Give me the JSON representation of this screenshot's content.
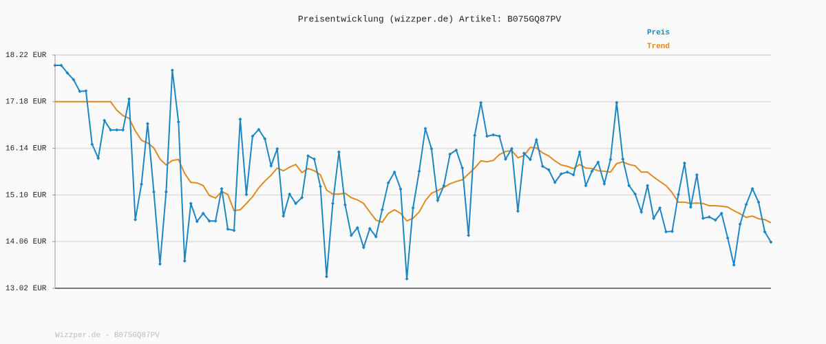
{
  "chart_data": {
    "type": "line",
    "title": "Preisentwicklung (wizzper.de) Artikel: B075GQ87PV",
    "footer": "Wizzper.de - B075GQ87PV",
    "ylim": [
      13.02,
      18.22
    ],
    "yticks": [
      {
        "value": 13.02,
        "label": "13.02 EUR"
      },
      {
        "value": 14.06,
        "label": "14.06 EUR"
      },
      {
        "value": 15.1,
        "label": "15.10 EUR"
      },
      {
        "value": 16.14,
        "label": "16.14 EUR"
      },
      {
        "value": 17.18,
        "label": "17.18 EUR"
      },
      {
        "value": 18.22,
        "label": "18.22 EUR"
      }
    ],
    "grid": true,
    "legend": "top-right",
    "series": [
      {
        "name": "Preis",
        "color": "#1b86c4",
        "markers": true,
        "values": [
          17.99,
          17.99,
          17.82,
          17.67,
          17.41,
          17.42,
          16.23,
          15.92,
          16.76,
          16.55,
          16.55,
          16.55,
          17.24,
          14.55,
          15.34,
          16.69,
          15.17,
          13.56,
          15.17,
          17.88,
          16.73,
          13.63,
          14.91,
          14.51,
          14.69,
          14.52,
          14.52,
          15.24,
          14.34,
          14.31,
          16.79,
          15.11,
          16.41,
          16.56,
          16.35,
          15.75,
          16.13,
          14.63,
          15.12,
          14.91,
          15.04,
          15.97,
          15.9,
          15.29,
          13.28,
          14.91,
          16.06,
          14.88,
          14.2,
          14.37,
          13.93,
          14.35,
          14.17,
          14.77,
          15.37,
          15.61,
          15.23,
          13.23,
          14.81,
          15.63,
          16.58,
          16.13,
          14.98,
          15.31,
          16.01,
          16.1,
          15.7,
          14.2,
          16.43,
          17.16,
          16.41,
          16.44,
          16.41,
          15.9,
          16.13,
          14.74,
          16.03,
          15.89,
          16.33,
          15.74,
          15.66,
          15.38,
          15.57,
          15.61,
          15.55,
          16.06,
          15.31,
          15.63,
          15.83,
          15.35,
          15.89,
          17.16,
          15.9,
          15.31,
          15.12,
          14.72,
          15.31,
          14.58,
          14.81,
          14.28,
          14.29,
          15.11,
          15.81,
          14.83,
          15.55,
          14.58,
          14.61,
          14.54,
          14.69,
          14.14,
          13.54,
          14.45,
          14.89,
          15.24,
          14.94,
          14.28,
          14.05
        ]
      },
      {
        "name": "Trend",
        "color": "#e0891e",
        "markers": false,
        "values": [
          17.18,
          17.18,
          17.18,
          17.18,
          17.18,
          17.18,
          17.18,
          17.18,
          17.18,
          17.18,
          16.99,
          16.87,
          16.81,
          16.53,
          16.32,
          16.26,
          16.15,
          15.9,
          15.77,
          15.87,
          15.89,
          15.58,
          15.38,
          15.37,
          15.31,
          15.09,
          15.03,
          15.18,
          15.11,
          14.75,
          14.77,
          14.91,
          15.06,
          15.26,
          15.41,
          15.54,
          15.7,
          15.64,
          15.72,
          15.78,
          15.6,
          15.69,
          15.64,
          15.55,
          15.21,
          15.12,
          15.12,
          15.14,
          15.04,
          14.99,
          14.91,
          14.72,
          14.54,
          14.49,
          14.69,
          14.77,
          14.69,
          14.52,
          14.58,
          14.72,
          14.97,
          15.14,
          15.2,
          15.27,
          15.35,
          15.4,
          15.44,
          15.57,
          15.7,
          15.86,
          15.84,
          15.87,
          16.0,
          16.07,
          16.09,
          15.93,
          15.98,
          16.16,
          16.15,
          16.04,
          15.97,
          15.86,
          15.77,
          15.74,
          15.69,
          15.78,
          15.7,
          15.69,
          15.64,
          15.63,
          15.61,
          15.8,
          15.84,
          15.78,
          15.75,
          15.61,
          15.61,
          15.5,
          15.4,
          15.31,
          15.15,
          14.94,
          14.94,
          14.91,
          14.92,
          14.91,
          14.86,
          14.86,
          14.85,
          14.83,
          14.75,
          14.68,
          14.6,
          14.63,
          14.57,
          14.55,
          14.48
        ]
      }
    ]
  }
}
